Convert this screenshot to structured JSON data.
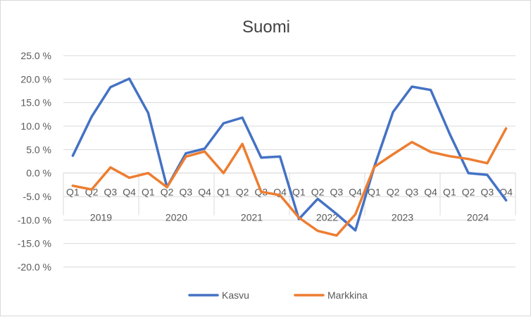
{
  "colors": {
    "kasvu": "#4472C4",
    "markkina": "#ED7D31",
    "grid": "#d9d9d9",
    "text": "#595959"
  },
  "chart_data": {
    "type": "line",
    "title": "Suomi",
    "xlabel": "",
    "ylabel": "",
    "ylim": [
      -20,
      25
    ],
    "yticks": [
      "25.0 %",
      "20.0 %",
      "15.0 %",
      "10.0 %",
      "5.0 %",
      "0.0 %",
      "-5.0 %",
      "-10.0 %",
      "-15.0 %",
      "-20.0 %"
    ],
    "ytick_values": [
      25,
      20,
      15,
      10,
      5,
      0,
      -5,
      -10,
      -15,
      -20
    ],
    "years": [
      "2019",
      "2020",
      "2021",
      "2022",
      "2023",
      "2024"
    ],
    "quarters": [
      "Q1",
      "Q2",
      "Q3",
      "Q4"
    ],
    "grid": true,
    "legend_position": "bottom",
    "series": [
      {
        "name": "Kasvu",
        "color": "#4472C4",
        "values": [
          3.7,
          12.0,
          18.3,
          20.1,
          12.8,
          -3.0,
          4.2,
          5.2,
          10.6,
          11.8,
          3.3,
          3.5,
          -9.8,
          -5.5,
          -8.7,
          -12.2,
          1.3,
          13.0,
          18.4,
          17.7,
          8.4,
          0.0,
          -0.4,
          -5.8
        ]
      },
      {
        "name": "Markkina",
        "color": "#ED7D31",
        "values": [
          -2.7,
          -3.5,
          1.2,
          -1.0,
          0.0,
          -3.0,
          3.5,
          4.6,
          0.0,
          6.2,
          -4.0,
          -4.7,
          -9.5,
          -12.3,
          -13.3,
          -8.8,
          1.3,
          4.0,
          6.6,
          4.5,
          3.6,
          3.0,
          2.1,
          9.5
        ]
      }
    ]
  }
}
